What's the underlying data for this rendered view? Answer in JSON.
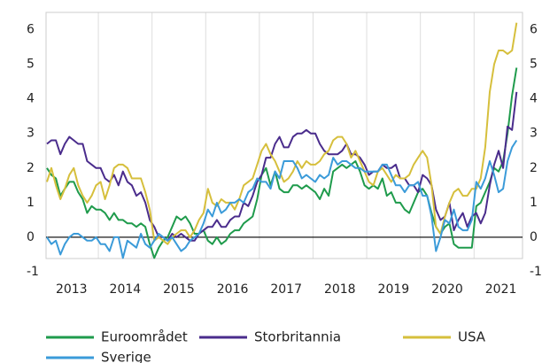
{
  "chart_data": {
    "type": "line",
    "categories": [
      null,
      null,
      null,
      null,
      null,
      null,
      "2013",
      null,
      null,
      null,
      null,
      null,
      null,
      null,
      null,
      null,
      null,
      null,
      "2014",
      null,
      null,
      null,
      null,
      null,
      null,
      null,
      null,
      null,
      null,
      null,
      "2015",
      null,
      null,
      null,
      null,
      null,
      null,
      null,
      null,
      null,
      null,
      null,
      "2016",
      null,
      null,
      null,
      null,
      null,
      null,
      null,
      null,
      null,
      null,
      null,
      "2017",
      null,
      null,
      null,
      null,
      null,
      null,
      null,
      null,
      null,
      null,
      null,
      "2018",
      null,
      null,
      null,
      null,
      null,
      null,
      null,
      null,
      null,
      null,
      null,
      "2019",
      null,
      null,
      null,
      null,
      null,
      null,
      null,
      null,
      null,
      null,
      null,
      "2020",
      null,
      null,
      null,
      null,
      null,
      null,
      null,
      null,
      null,
      null,
      null,
      "2021",
      null,
      null,
      null
    ],
    "series": [
      {
        "name": "Euroområdet",
        "color": "#1f9b4c",
        "values": [
          2.0,
          1.8,
          1.7,
          1.2,
          1.4,
          1.6,
          1.6,
          1.3,
          1.1,
          0.7,
          0.9,
          0.8,
          0.8,
          0.7,
          0.5,
          0.7,
          0.5,
          0.5,
          0.4,
          0.4,
          0.3,
          0.4,
          0.3,
          -0.2,
          -0.6,
          -0.3,
          -0.1,
          0.0,
          0.3,
          0.6,
          0.5,
          0.6,
          0.4,
          0.1,
          0.1,
          0.2,
          -0.1,
          -0.2,
          0.0,
          -0.2,
          -0.1,
          0.1,
          0.2,
          0.2,
          0.4,
          0.5,
          0.6,
          1.1,
          1.8,
          2.0,
          1.5,
          1.9,
          1.4,
          1.3,
          1.3,
          1.5,
          1.5,
          1.4,
          1.5,
          1.4,
          1.3,
          1.1,
          1.4,
          1.2,
          1.9,
          2.0,
          2.1,
          2.0,
          2.1,
          2.2,
          1.9,
          1.5,
          1.4,
          1.5,
          1.4,
          1.7,
          1.2,
          1.3,
          1.0,
          1.0,
          0.8,
          0.7,
          1.0,
          1.3,
          1.4,
          1.2,
          0.7,
          0.3,
          0.1,
          0.3,
          0.4,
          -0.2,
          -0.3,
          -0.3,
          -0.3,
          -0.3,
          0.9,
          1.0,
          1.3,
          1.6,
          2.0,
          1.9,
          2.2,
          3.0,
          4.1,
          4.9
        ]
      },
      {
        "name": "Storbritannia",
        "color": "#4a2c8c",
        "values": [
          2.7,
          2.8,
          2.8,
          2.4,
          2.7,
          2.9,
          2.8,
          2.7,
          2.7,
          2.2,
          2.1,
          2.0,
          2.0,
          1.7,
          1.6,
          1.8,
          1.5,
          1.9,
          1.6,
          1.5,
          1.2,
          1.3,
          1.0,
          0.5,
          0.3,
          0.0,
          0.0,
          -0.1,
          0.1,
          0.0,
          0.1,
          0.0,
          -0.1,
          -0.1,
          0.1,
          0.2,
          0.3,
          0.3,
          0.5,
          0.3,
          0.3,
          0.5,
          0.6,
          0.6,
          1.0,
          0.9,
          1.2,
          1.6,
          1.8,
          2.3,
          2.3,
          2.7,
          2.9,
          2.6,
          2.6,
          2.9,
          3.0,
          3.0,
          3.1,
          3.0,
          3.0,
          2.7,
          2.5,
          2.4,
          2.4,
          2.4,
          2.5,
          2.7,
          2.4,
          2.4,
          2.3,
          2.1,
          1.8,
          1.9,
          1.9,
          2.1,
          2.0,
          2.0,
          2.1,
          1.7,
          1.7,
          1.5,
          1.5,
          1.3,
          1.8,
          1.7,
          1.5,
          0.8,
          0.5,
          0.6,
          1.0,
          0.2,
          0.5,
          0.7,
          0.3,
          0.6,
          0.7,
          0.4,
          0.7,
          1.5,
          2.1,
          2.5,
          2.0,
          3.2,
          3.1,
          4.2
        ]
      },
      {
        "name": "USA",
        "color": "#d6bf3c",
        "values": [
          1.6,
          2.0,
          1.5,
          1.1,
          1.4,
          1.8,
          2.0,
          1.5,
          1.2,
          1.0,
          1.2,
          1.5,
          1.6,
          1.1,
          1.5,
          2.0,
          2.1,
          2.1,
          2.0,
          1.7,
          1.7,
          1.7,
          1.3,
          0.8,
          -0.1,
          0.0,
          -0.1,
          -0.2,
          0.0,
          0.1,
          0.2,
          0.2,
          0.0,
          0.2,
          0.5,
          0.7,
          1.4,
          1.0,
          0.9,
          1.1,
          1.0,
          1.0,
          0.8,
          1.1,
          1.5,
          1.6,
          1.7,
          2.1,
          2.5,
          2.7,
          2.4,
          2.2,
          1.9,
          1.6,
          1.7,
          1.9,
          2.2,
          2.0,
          2.2,
          2.1,
          2.1,
          2.2,
          2.4,
          2.5,
          2.8,
          2.9,
          2.9,
          2.7,
          2.3,
          2.5,
          2.2,
          1.9,
          1.6,
          1.5,
          1.9,
          2.0,
          1.8,
          1.6,
          1.8,
          1.7,
          1.7,
          1.8,
          2.1,
          2.3,
          2.5,
          2.3,
          1.5,
          0.3,
          0.1,
          0.6,
          1.0,
          1.3,
          1.4,
          1.2,
          1.2,
          1.4,
          1.4,
          1.7,
          2.6,
          4.2,
          5.0,
          5.4,
          5.4,
          5.3,
          5.4,
          6.2
        ]
      },
      {
        "name": "Sverige",
        "color": "#3b9bd9",
        "values": [
          0.0,
          -0.2,
          -0.1,
          -0.5,
          -0.2,
          0.0,
          0.1,
          0.1,
          0.0,
          -0.1,
          -0.1,
          0.0,
          -0.2,
          -0.2,
          -0.4,
          0.0,
          0.0,
          -0.6,
          -0.1,
          -0.2,
          -0.3,
          0.1,
          -0.2,
          -0.3,
          -0.1,
          0.1,
          0.0,
          -0.1,
          0.0,
          -0.2,
          -0.4,
          -0.3,
          -0.1,
          0.0,
          0.1,
          0.4,
          0.8,
          0.6,
          1.0,
          0.7,
          0.8,
          1.0,
          1.0,
          1.1,
          1.0,
          1.3,
          1.4,
          1.7,
          1.6,
          1.6,
          1.4,
          1.9,
          1.7,
          2.2,
          2.2,
          2.2,
          2.0,
          1.7,
          1.8,
          1.7,
          1.6,
          1.8,
          1.7,
          1.8,
          2.3,
          2.1,
          2.2,
          2.2,
          2.1,
          2.0,
          2.0,
          1.9,
          1.9,
          1.9,
          1.9,
          2.1,
          2.1,
          1.8,
          1.5,
          1.5,
          1.3,
          1.5,
          1.5,
          1.6,
          1.2,
          1.2,
          0.6,
          -0.4,
          0.0,
          0.5,
          0.4,
          0.8,
          0.3,
          0.2,
          0.2,
          0.5,
          1.6,
          1.4,
          1.7,
          2.2,
          1.8,
          1.3,
          1.4,
          2.2,
          2.6,
          2.8
        ]
      }
    ],
    "ylim": [
      -1,
      6.5
    ],
    "yticks": [
      -1,
      0,
      1,
      2,
      3,
      4,
      5,
      6
    ]
  }
}
